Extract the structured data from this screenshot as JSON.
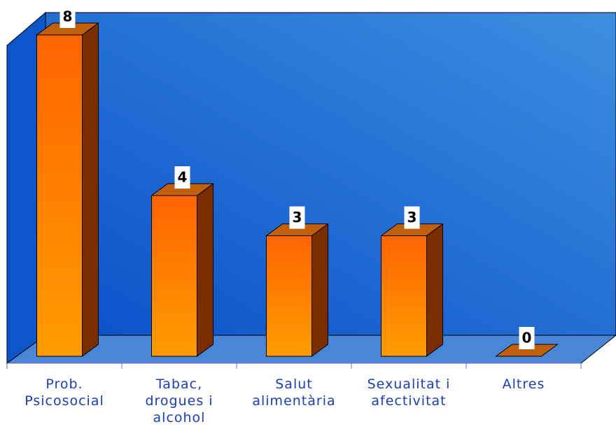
{
  "chart_data": {
    "type": "bar3d",
    "categories": [
      "Prob. Psicosocial",
      "Tabac, drogues i alcohol",
      "Salut alimentària",
      "Sexualitat i afectivitat",
      "Altres"
    ],
    "values": [
      8,
      4,
      3,
      3,
      0
    ],
    "color": "#ff7a00",
    "ylim": [
      0,
      8
    ]
  }
}
